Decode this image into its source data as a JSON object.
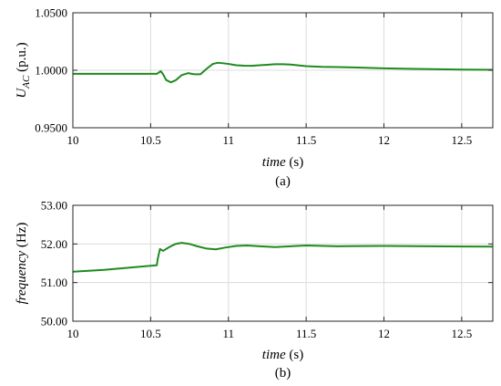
{
  "chart_data": [
    {
      "type": "line",
      "caption": "(a)",
      "xlabel_italic": "time",
      "xlabel_unit": " (s)",
      "ylabel_main": "U",
      "ylabel_sub": "AC",
      "ylabel_unit": " (p.u.)",
      "xlim": [
        10,
        12.7
      ],
      "ylim": [
        0.95,
        1.05
      ],
      "xticks": [
        10,
        10.5,
        11,
        11.5,
        12,
        12.5
      ],
      "xtick_labels": [
        "10",
        "10.5",
        "11",
        "11.5",
        "12",
        "12.5"
      ],
      "yticks": [
        0.95,
        1.0,
        1.05
      ],
      "ytick_labels": [
        "0.9500",
        "1.0000",
        "1.0500"
      ],
      "grid": true,
      "color": "#1f8a1f",
      "series": [
        {
          "x": [
            10.0,
            10.3,
            10.54,
            10.565,
            10.58,
            10.6,
            10.63,
            10.66,
            10.7,
            10.74,
            10.78,
            10.82,
            10.86,
            10.9,
            10.93,
            10.96,
            11.0,
            11.05,
            11.1,
            11.15,
            11.2,
            11.25,
            11.3,
            11.35,
            11.4,
            11.5,
            11.6,
            11.7,
            11.8,
            12.0,
            12.2,
            12.5,
            12.7
          ],
          "y": [
            0.9969,
            0.9969,
            0.9969,
            0.9992,
            0.9965,
            0.9915,
            0.9895,
            0.9912,
            0.9958,
            0.9975,
            0.9965,
            0.9965,
            1.0013,
            1.0055,
            1.0065,
            1.0062,
            1.0055,
            1.0044,
            1.004,
            1.0039,
            1.0044,
            1.0048,
            1.0053,
            1.0053,
            1.005,
            1.0036,
            1.003,
            1.0028,
            1.0025,
            1.0017,
            1.0012,
            1.0006,
            1.0004
          ]
        }
      ]
    },
    {
      "type": "line",
      "caption": "(b)",
      "xlabel_italic": "time",
      "xlabel_unit": " (s)",
      "ylabel_italic": "frequency",
      "ylabel_unit": " (Hz)",
      "xlim": [
        10,
        12.7
      ],
      "ylim": [
        50.0,
        53.0
      ],
      "xticks": [
        10,
        10.5,
        11,
        11.5,
        12,
        12.5
      ],
      "xtick_labels": [
        "10",
        "10.5",
        "11",
        "11.5",
        "12",
        "12.5"
      ],
      "yticks": [
        50.0,
        51.0,
        52.0,
        53.0
      ],
      "ytick_labels": [
        "50.00",
        "51.00",
        "52.00",
        "53.00"
      ],
      "grid": true,
      "color": "#1f8a1f",
      "series": [
        {
          "x": [
            10.0,
            10.2,
            10.4,
            10.54,
            10.545,
            10.56,
            10.58,
            10.62,
            10.66,
            10.7,
            10.75,
            10.8,
            10.86,
            10.92,
            10.97,
            11.05,
            11.12,
            11.2,
            11.3,
            11.5,
            11.7,
            12.0,
            12.3,
            12.7
          ],
          "y": [
            51.28,
            51.33,
            51.4,
            51.45,
            51.6,
            51.87,
            51.82,
            51.92,
            52.0,
            52.03,
            52.0,
            51.94,
            51.88,
            51.86,
            51.9,
            51.95,
            51.96,
            51.94,
            51.92,
            51.96,
            51.94,
            51.95,
            51.94,
            51.93
          ]
        }
      ]
    }
  ]
}
